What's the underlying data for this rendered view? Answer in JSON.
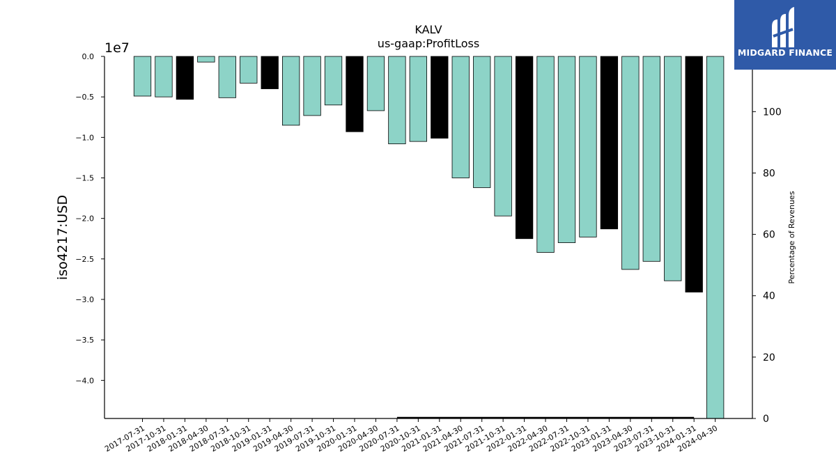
{
  "chart_data": {
    "type": "bar",
    "title": "KALV",
    "subtitle": "us-gaap:ProfitLoss",
    "ylabel": "iso4217:USD",
    "y_offset_label": "1e7",
    "y2label": "Percentage of Revenues",
    "ylim": [
      -44700000,
      0
    ],
    "y2lim": [
      0,
      118
    ],
    "y_ticks": [
      "0.0",
      "−0.5",
      "−1.0",
      "−1.5",
      "−2.0",
      "−2.5",
      "−3.0",
      "−3.5",
      "−4.0"
    ],
    "y2_ticks": [
      "0",
      "20",
      "40",
      "60",
      "80",
      "100"
    ],
    "grid": false,
    "categories": [
      "2017-07-31",
      "2017-10-31",
      "2018-01-31",
      "2018-04-30",
      "2018-07-31",
      "2018-10-31",
      "2019-01-31",
      "2019-04-30",
      "2019-07-31",
      "2019-10-31",
      "2020-01-31",
      "2020-04-30",
      "2020-07-31",
      "2020-10-31",
      "2021-01-31",
      "2021-04-30",
      "2021-07-31",
      "2021-10-31",
      "2022-01-31",
      "2022-04-30",
      "2022-07-31",
      "2022-10-31",
      "2023-01-31",
      "2023-04-30",
      "2023-07-31",
      "2023-10-31",
      "2024-01-31",
      "2024-04-30"
    ],
    "values": [
      -4900000,
      -5000000,
      -5300000,
      -700000,
      -5100000,
      -3300000,
      -4000000,
      -8500000,
      -7300000,
      -6000000,
      -9300000,
      -6700000,
      -10800000,
      -10500000,
      -10100000,
      -15000000,
      -16200000,
      -19700000,
      -22500000,
      -24200000,
      -23000000,
      -22300000,
      -21300000,
      -26300000,
      -25300000,
      -27700000,
      -29100000,
      -44700000
    ],
    "annual": [
      false,
      false,
      true,
      false,
      false,
      false,
      true,
      false,
      false,
      false,
      true,
      false,
      false,
      false,
      true,
      false,
      false,
      false,
      true,
      false,
      false,
      false,
      true,
      false,
      false,
      false,
      true,
      false
    ],
    "colors": {
      "quarter": "#8dd3c7",
      "annual": "#000000",
      "edge": "#000000"
    },
    "percentage_line": {
      "from": "2020-07-31",
      "to": "2024-01-31",
      "value": 0
    }
  },
  "logo": {
    "text": "MIDGARD FINANCE",
    "background": "#2f5aa8"
  }
}
